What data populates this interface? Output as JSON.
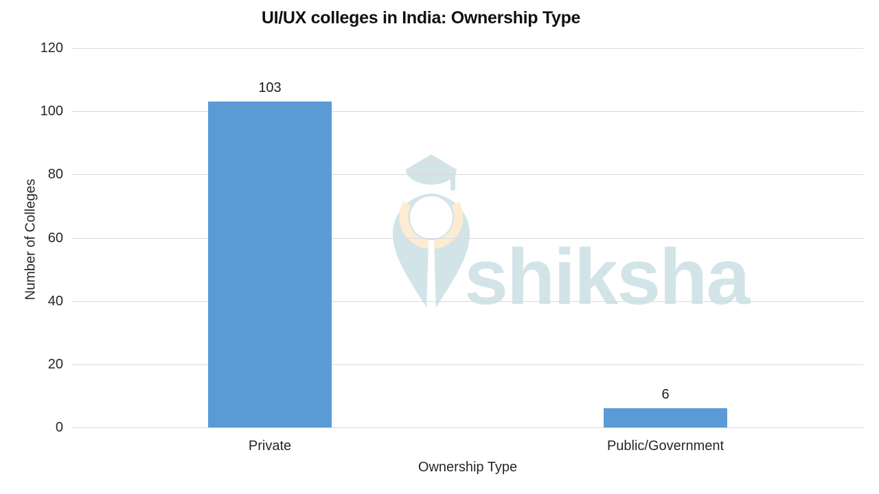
{
  "chart_data": {
    "type": "bar",
    "title": "UI/UX colleges in India: Ownership Type",
    "categories": [
      "Private",
      "Public/Government"
    ],
    "values": [
      103,
      6
    ],
    "data_labels": [
      "103",
      "6"
    ],
    "xlabel": "Ownership Type",
    "ylabel": "Number of Colleges",
    "ylim": [
      0,
      120
    ],
    "yticks": [
      0,
      20,
      40,
      60,
      80,
      100,
      120
    ],
    "grid": "horizontal",
    "legend": "none",
    "colors": {
      "bar": "#5b9bd5",
      "gridline": "#d9d9d9",
      "title_text": "#111111",
      "label_text": "#262626",
      "background": "#ffffff"
    }
  },
  "watermark": {
    "text": "shiksha",
    "icon": "shiksha-pen-nib-graduation-cap-logo",
    "logo_color": "#d2e4e8",
    "accent_color": "#fcecd2",
    "cutout_color": "#ffffff"
  }
}
